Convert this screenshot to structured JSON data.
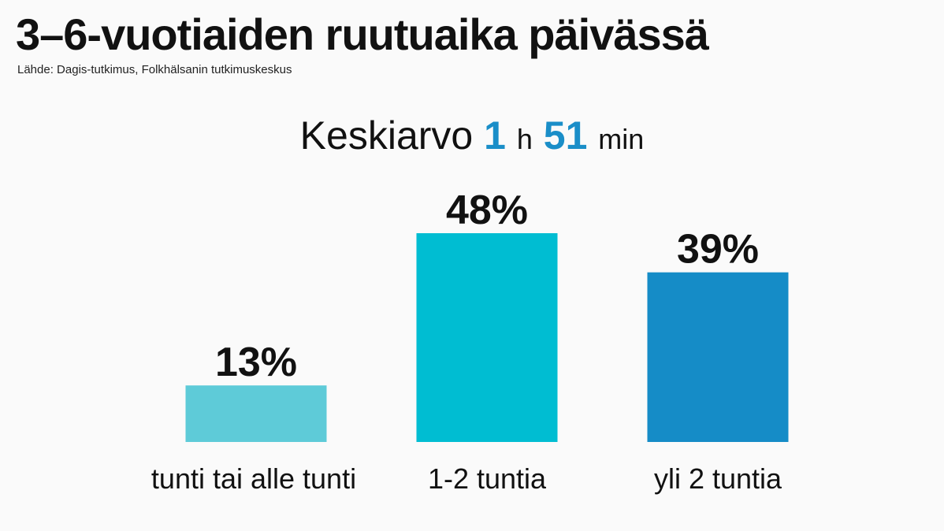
{
  "title": "3–6-vuotiaiden ruutuaika päivässä",
  "source": "Lähde: Dagis-tutkimus, Folkhälsanin tutkimuskeskus",
  "summary": {
    "label": "Keskiarvo",
    "hours": "1",
    "hours_unit": "h",
    "minutes": "51",
    "minutes_unit": "min"
  },
  "colors": {
    "bar_1": "#5ecbd8",
    "bar_2": "#00bdd2",
    "bar_3": "#158cc7",
    "accent_text": "#1a8ec8"
  },
  "chart_data": {
    "type": "bar",
    "categories": [
      "tunti tai alle tunti",
      "1-2 tuntia",
      "yli 2 tuntia"
    ],
    "values": [
      13,
      48,
      39
    ],
    "value_labels": [
      "13%",
      "48%",
      "39%"
    ],
    "unit": "%",
    "ylim": [
      0,
      48
    ],
    "grid": false,
    "legend": "none"
  }
}
